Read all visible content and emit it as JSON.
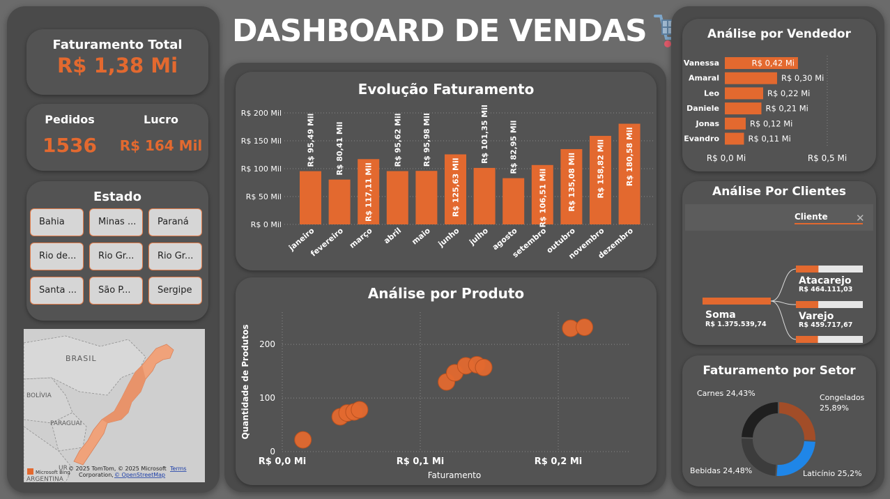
{
  "title": "DASHBOARD DE VENDAS",
  "cart_icon": "shopping-cart-icon",
  "kpis": {
    "faturamento_label": "Faturamento Total",
    "faturamento_value": "R$ 1,38 Mi",
    "pedidos_label": "Pedidos",
    "pedidos_value": "1536",
    "lucro_label": "Lucro",
    "lucro_value": "R$ 164 Mil"
  },
  "estado": {
    "title": "Estado",
    "items": [
      "Bahia",
      "Minas ...",
      "Paraná",
      "Rio de...",
      "Rio Gr...",
      "Rio Gr...",
      "Santa ...",
      "São P...",
      "Sergipe"
    ]
  },
  "map": {
    "labels": [
      "BRASIL",
      "BOLÍVIA",
      "PARAGUAI",
      "ARGENTINA",
      "UR"
    ],
    "attribution_1": "© 2025 TomTom, © 2025 Microsoft",
    "attribution_terms": "Terms",
    "attribution_2": "Corporation,",
    "attribution_osm": "© OpenStreetMap",
    "bing_logo": "Microsoft Bing",
    "highlight_color": "#f0a27a"
  },
  "evolucao": {
    "title": "Evolução Faturamento",
    "chart_data": {
      "type": "bar",
      "categories": [
        "janeiro",
        "fevereiro",
        "março",
        "abril",
        "maio",
        "junho",
        "julho",
        "agosto",
        "setembro",
        "outubro",
        "novembro",
        "dezembro"
      ],
      "values": [
        95.49,
        80.41,
        117.11,
        95.62,
        95.98,
        125.63,
        101.35,
        82.95,
        106.51,
        135.08,
        158.82,
        180.58
      ],
      "data_labels": [
        "R$ 95,49 Mil",
        "R$ 80,41 Mil",
        "R$ 117,11 Mil",
        "R$ 95,62 Mil",
        "R$ 95,98 Mil",
        "R$ 125,63 Mil",
        "R$ 101,35 Mil",
        "R$ 82,95 Mil",
        "R$ 106,51 Mil",
        "R$ 135,08 Mil",
        "R$ 158,82 Mil",
        "R$ 180,58 Mil"
      ],
      "label_inside": [
        false,
        false,
        true,
        false,
        false,
        true,
        false,
        false,
        true,
        true,
        true,
        true
      ],
      "ylim": [
        0,
        200
      ],
      "yticks": [
        0,
        50,
        100,
        150,
        200
      ],
      "ytick_labels": [
        "R$ 0 Mil",
        "R$ 50 Mil",
        "R$ 100 Mil",
        "R$ 150 Mil",
        "R$ 200 Mil"
      ],
      "grid": true,
      "color": "#e3692f"
    }
  },
  "produto": {
    "title": "Análise por Produto",
    "chart_data": {
      "type": "scatter",
      "xlabel": "Faturamento",
      "ylabel": "Quantidade de Produtos",
      "xlim": [
        0,
        0.25
      ],
      "ylim": [
        0,
        260
      ],
      "xticks": [
        0,
        0.1,
        0.2
      ],
      "xtick_labels": [
        "R$ 0,0 Mi",
        "R$ 0,1 Mi",
        "R$ 0,2 Mi"
      ],
      "yticks": [
        0,
        100,
        200
      ],
      "ytick_labels": [
        "0",
        "100",
        "200"
      ],
      "points": [
        {
          "x": 0.015,
          "y": 22
        },
        {
          "x": 0.042,
          "y": 65
        },
        {
          "x": 0.047,
          "y": 72
        },
        {
          "x": 0.052,
          "y": 74
        },
        {
          "x": 0.056,
          "y": 78
        },
        {
          "x": 0.119,
          "y": 130
        },
        {
          "x": 0.125,
          "y": 147
        },
        {
          "x": 0.133,
          "y": 160
        },
        {
          "x": 0.141,
          "y": 162
        },
        {
          "x": 0.146,
          "y": 157
        },
        {
          "x": 0.209,
          "y": 230
        },
        {
          "x": 0.219,
          "y": 232
        }
      ],
      "grid": true,
      "color": "#e3692f"
    }
  },
  "vendedor": {
    "title": "Análise por Vendedor",
    "chart_data": {
      "type": "bar",
      "orientation": "horizontal",
      "categories": [
        "Vanessa",
        "Amaral",
        "Leo",
        "Daniele",
        "Jonas",
        "Evandro"
      ],
      "values": [
        0.42,
        0.3,
        0.22,
        0.21,
        0.12,
        0.11
      ],
      "data_labels": [
        "R$ 0,42 Mi",
        "R$ 0,30 Mi",
        "R$ 0,22 Mi",
        "R$ 0,21 Mi",
        "R$ 0,12 Mi",
        "R$ 0,11 Mi"
      ],
      "xlim": [
        0,
        0.5
      ],
      "xtick_labels": [
        "R$ 0,0 Mi",
        "R$ 0,5 Mi"
      ],
      "color": "#e3692f"
    }
  },
  "clientes": {
    "title": "Análise Por Clientes",
    "filter_label": "Cliente",
    "close_icon": "close-icon",
    "root_label": "Soma",
    "root_value": "R$ 1.375.539,74",
    "nodes": [
      {
        "label": "Atacarejo",
        "value": "R$ 464.111,03",
        "fraction": 0.337
      },
      {
        "label": "Varejo",
        "value": "R$ 459.717,67",
        "fraction": 0.334
      },
      {
        "label": "",
        "value": "",
        "fraction": 0.329
      }
    ]
  },
  "setor": {
    "title": "Faturamento por Setor",
    "chart_data": {
      "type": "pie",
      "donut": true,
      "slices": [
        {
          "name": "Congelados",
          "value": 25.89,
          "label": "Congelados 25,89%",
          "color": "#a24d28"
        },
        {
          "name": "Laticínio",
          "value": 25.2,
          "label": "Laticínio 25,2%",
          "color": "#1f86e8"
        },
        {
          "name": "Bebidas",
          "value": 24.48,
          "label": "Bebidas 24,48%",
          "color": "#3c3c3c"
        },
        {
          "name": "Carnes",
          "value": 24.43,
          "label": "Carnes 24,43%",
          "color": "#1f1f1f"
        }
      ]
    }
  }
}
